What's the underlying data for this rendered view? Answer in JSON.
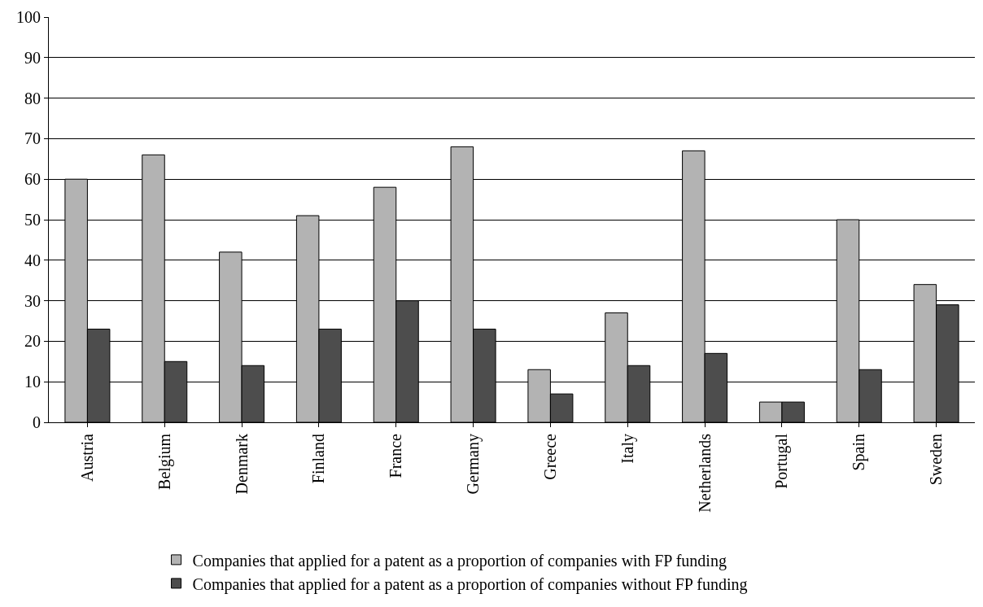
{
  "chart_data": {
    "type": "bar",
    "categories": [
      "Austria",
      "Belgium",
      "Denmark",
      "Finland",
      "France",
      "Germany",
      "Greece",
      "Italy",
      "Netherlands",
      "Portugal",
      "Spain",
      "Sweden"
    ],
    "series": [
      {
        "name": "Companies that applied for a patent as a proportion of companies with FP funding",
        "color": "#b3b3b3",
        "values": [
          60,
          66,
          42,
          51,
          58,
          68,
          13,
          27,
          67,
          5,
          50,
          34
        ]
      },
      {
        "name": "Companies that applied for a patent as a proportion of companies without FP funding",
        "color": "#4d4d4d",
        "values": [
          23,
          15,
          14,
          23,
          30,
          23,
          7,
          14,
          17,
          5,
          13,
          29
        ]
      }
    ],
    "ylim": [
      0,
      100
    ],
    "yticks": [
      0,
      10,
      20,
      30,
      40,
      50,
      60,
      70,
      80,
      90,
      100
    ],
    "grid": "y",
    "legend": "bottom"
  }
}
